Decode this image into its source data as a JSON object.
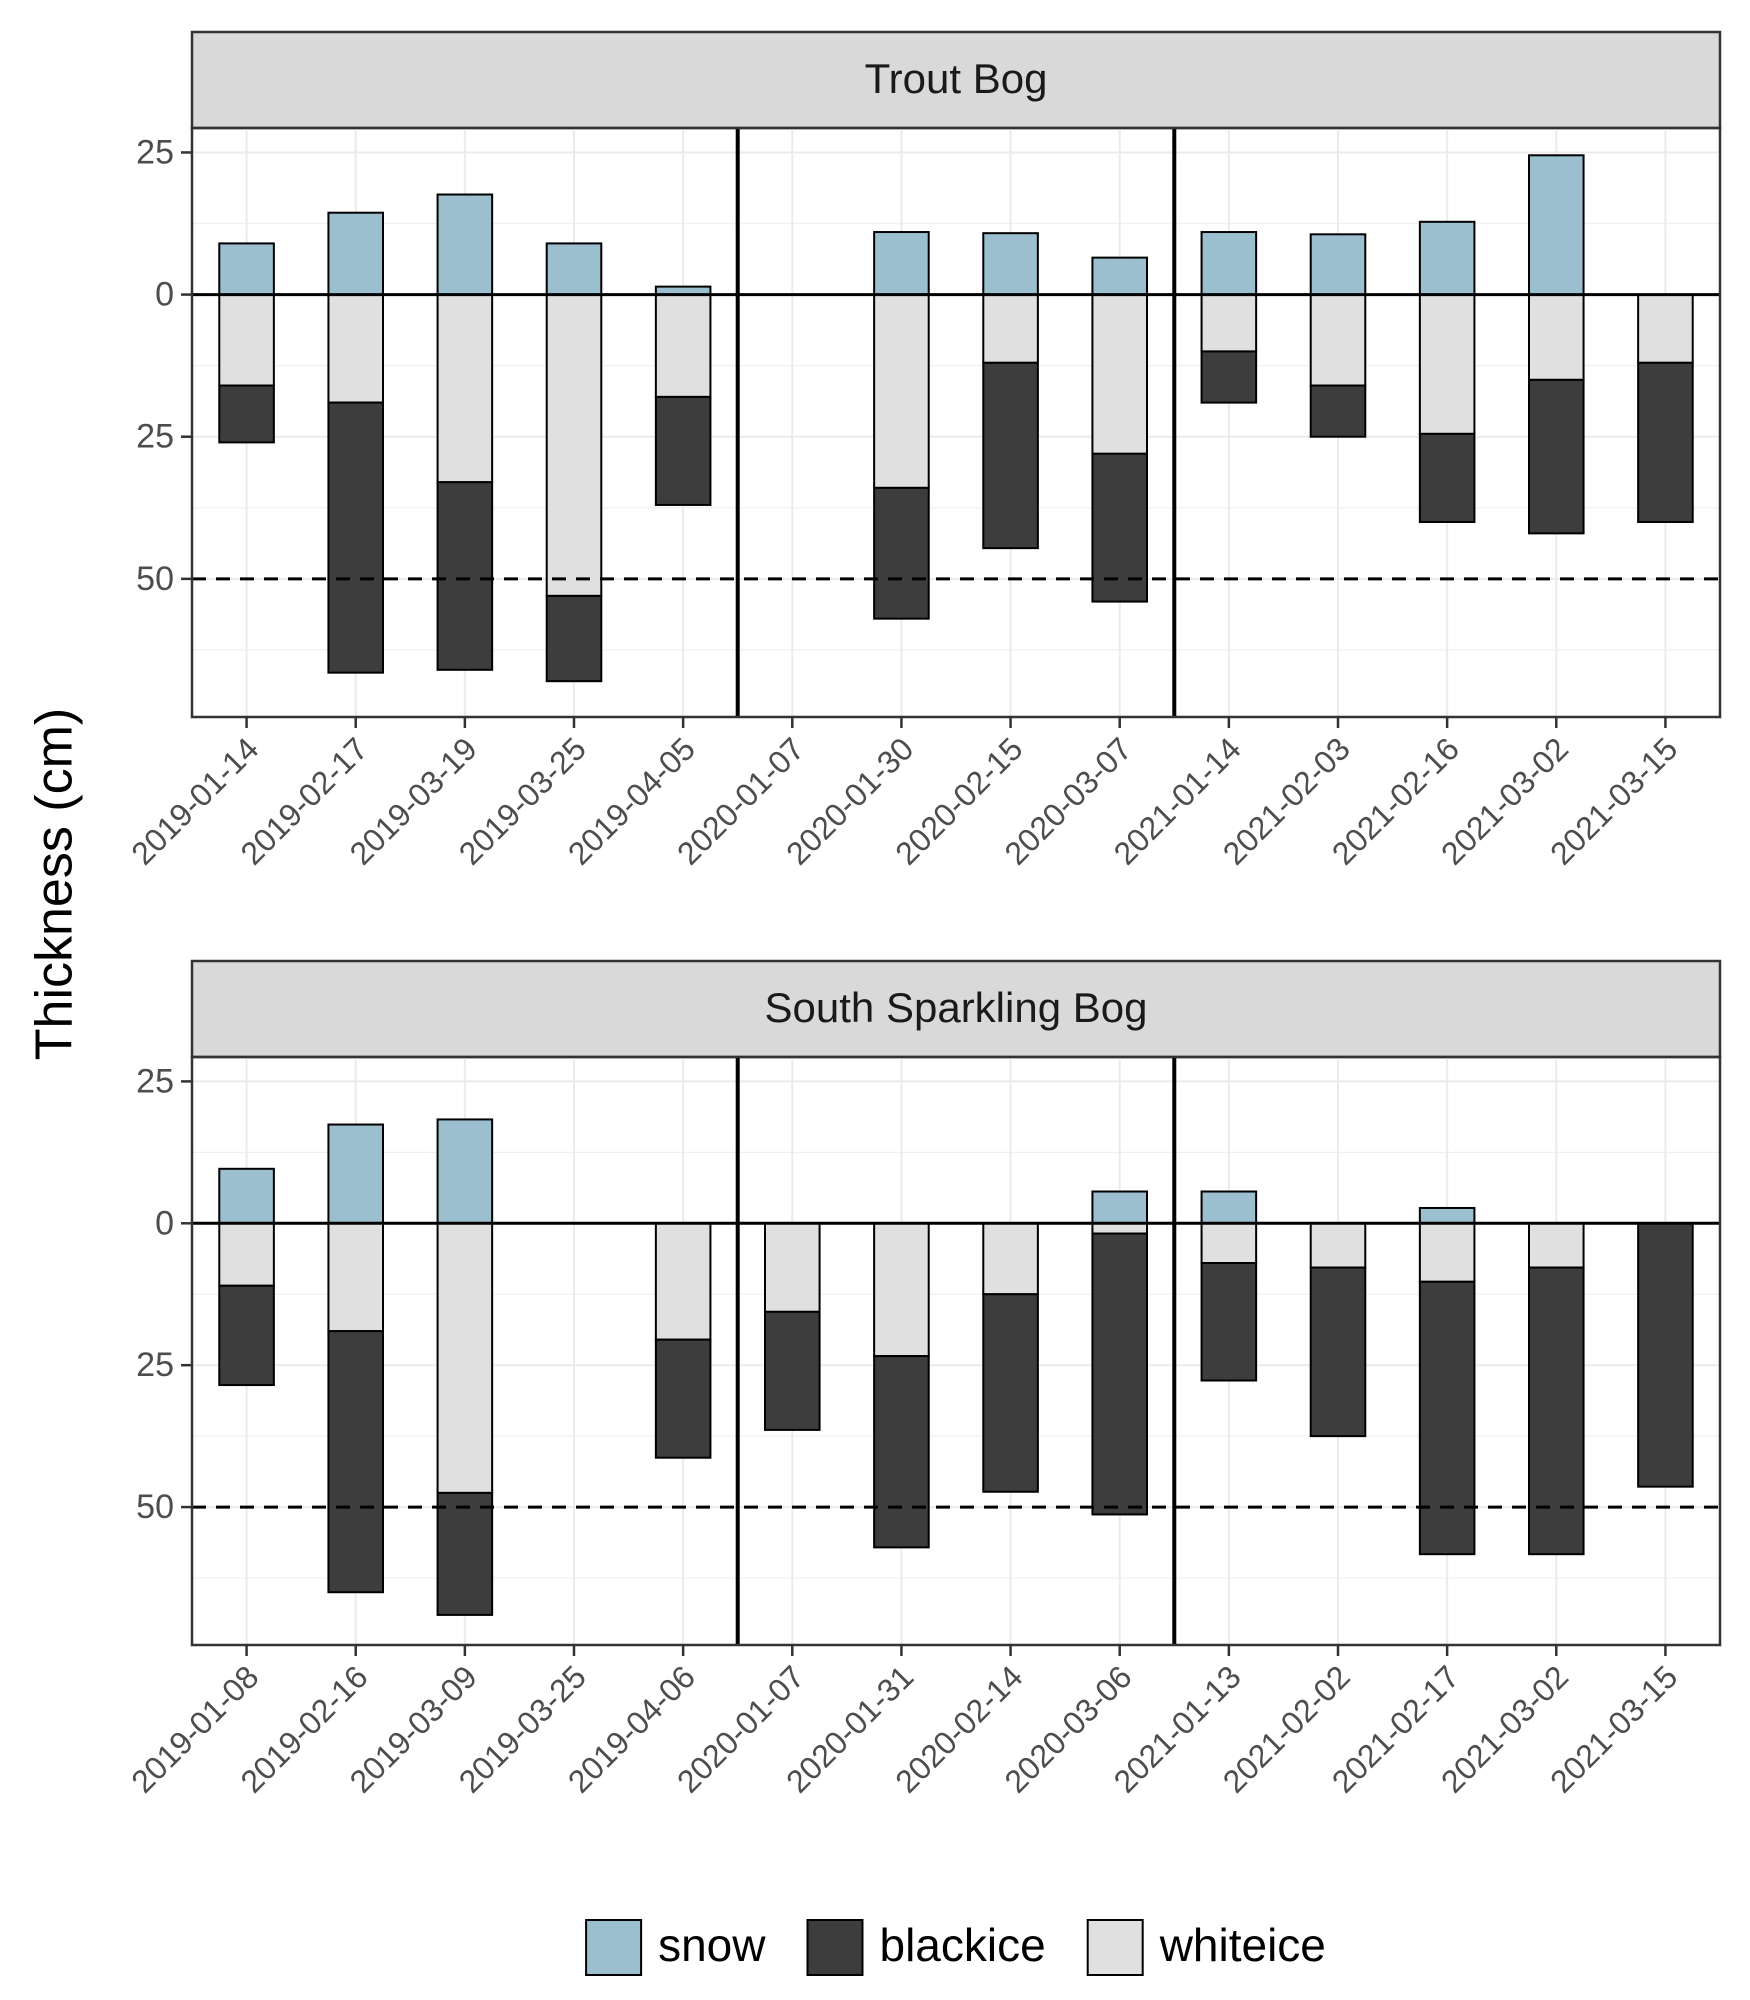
{
  "chart_data": [
    {
      "type": "bar",
      "stacked": true,
      "title": "Trout Bog",
      "ylabel": "Thickness (cm)",
      "legend": "bottom",
      "categories": [
        "2019-01-14",
        "2019-02-17",
        "2019-03-19",
        "2019-03-25",
        "2019-04-05",
        "2020-01-07",
        "2020-01-30",
        "2020-02-15",
        "2020-03-07",
        "2021-01-14",
        "2021-02-03",
        "2021-02-16",
        "2021-03-02",
        "2021-03-15"
      ],
      "series": [
        {
          "name": "snow",
          "color": "#9bbfcf",
          "values": [
            9,
            14.4,
            17.6,
            9,
            1.4,
            null,
            11,
            10.8,
            6.5,
            11,
            10.6,
            12.8,
            24.5,
            null
          ]
        },
        {
          "name": "blackice",
          "color": "#3d3d3d",
          "values": [
            -10,
            -47.5,
            -33,
            -15,
            -19,
            null,
            -23,
            -32.6,
            -26,
            -9,
            -9,
            -15.5,
            -27,
            -28
          ]
        },
        {
          "name": "whiteice",
          "color": "#e0e0e0",
          "values": [
            -16,
            -19,
            -33,
            -53,
            -18,
            null,
            -34,
            -12,
            -28,
            -10,
            -16,
            -24.5,
            -15,
            -12
          ]
        }
      ],
      "ylim": [
        -74.3,
        29.3
      ],
      "yticks": [
        25,
        0,
        {
          "value": -25,
          "label": "25"
        },
        {
          "value": -50,
          "label": "50"
        }
      ],
      "hlines": [
        {
          "value": 0,
          "style": "solid"
        },
        {
          "value": -50,
          "style": "dashed"
        }
      ],
      "grid": true
    },
    {
      "type": "bar",
      "stacked": true,
      "title": "South Sparkling Bog",
      "categories": [
        "2019-01-08",
        "2019-02-16",
        "2019-03-09",
        "2019-03-25",
        "2019-04-06",
        "2020-01-07",
        "2020-01-31",
        "2020-02-14",
        "2020-03-06",
        "2021-01-13",
        "2021-02-02",
        "2021-02-17",
        "2021-03-02",
        "2021-03-15"
      ],
      "series": [
        {
          "name": "snow",
          "color": "#9bbfcf",
          "values": [
            9.6,
            17.4,
            18.3,
            null,
            null,
            null,
            null,
            null,
            5.6,
            5.6,
            null,
            2.7,
            null,
            null
          ]
        },
        {
          "name": "blackice",
          "color": "#3d3d3d",
          "values": [
            -17.5,
            -46,
            -21.5,
            null,
            -20.8,
            -20.8,
            -33.7,
            -34.8,
            -49.5,
            -20.7,
            -29.7,
            -48,
            -50.5,
            -46.4
          ]
        },
        {
          "name": "whiteice",
          "color": "#e0e0e0",
          "values": [
            -11,
            -19,
            -47.5,
            null,
            -20.5,
            -15.6,
            -23.4,
            -12.5,
            -1.8,
            -7,
            -7.8,
            -10.3,
            -7.8,
            null
          ]
        }
      ],
      "ylim": [
        -74.3,
        29.3
      ],
      "yticks": [
        25,
        0,
        {
          "value": -25,
          "label": "25"
        },
        {
          "value": -50,
          "label": "50"
        }
      ],
      "hlines": [
        {
          "value": 0,
          "style": "solid"
        },
        {
          "value": -50,
          "style": "dashed"
        }
      ],
      "grid": true
    }
  ]
}
